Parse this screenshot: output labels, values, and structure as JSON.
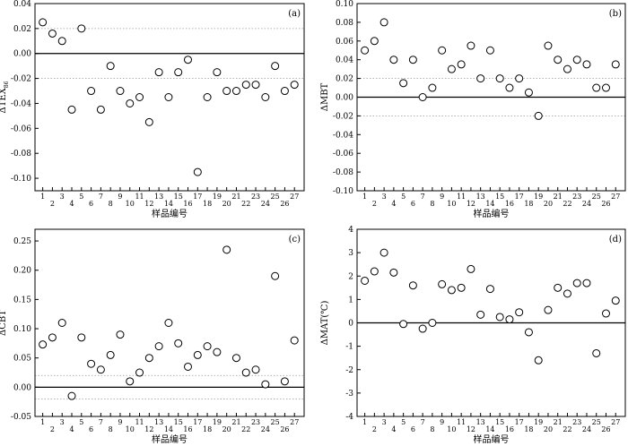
{
  "chart_data": [
    {
      "type": "scatter",
      "panel_label": "(a)",
      "xlabel": "样品编号",
      "ylabel": "ΔTEX",
      "ylabel_sub": "86",
      "x_ticks": [
        "1",
        "2",
        "3",
        "4",
        "5",
        "6",
        "7",
        "8",
        "9",
        "10",
        "11",
        "12",
        "13",
        "14",
        "15",
        "16",
        "17",
        "18",
        "19",
        "20",
        "21",
        "22",
        "23",
        "24",
        "25",
        "26",
        "27"
      ],
      "ylim": [
        -0.11,
        0.04
      ],
      "y_ticks": [
        0.04,
        0.02,
        0.0,
        -0.02,
        -0.04,
        -0.06,
        -0.08,
        -0.1
      ],
      "y_tick_labels": [
        "0.04",
        "0.02",
        "0.00",
        "-0.02",
        "-0.04",
        "-0.06",
        "-0.08",
        "-0.10"
      ],
      "zero_line": 0,
      "dotted_lines": [
        0.02,
        -0.02
      ],
      "x": [
        1,
        2,
        3,
        4,
        5,
        6,
        7,
        8,
        9,
        10,
        11,
        12,
        13,
        14,
        15,
        16,
        17,
        18,
        19,
        20,
        21,
        22,
        23,
        24,
        25,
        26,
        27
      ],
      "y": [
        0.025,
        0.016,
        0.01,
        -0.045,
        0.02,
        -0.03,
        -0.045,
        -0.01,
        -0.03,
        -0.04,
        -0.035,
        -0.055,
        -0.015,
        -0.035,
        -0.015,
        -0.005,
        -0.095,
        -0.035,
        -0.015,
        -0.03,
        -0.03,
        -0.025,
        -0.025,
        -0.035,
        -0.01,
        -0.03,
        -0.025
      ]
    },
    {
      "type": "scatter",
      "panel_label": "(b)",
      "xlabel": "样品编号",
      "ylabel": "ΔMBT",
      "ylabel_sub": "",
      "x_ticks": [
        "1",
        "2",
        "3",
        "4",
        "5",
        "6",
        "7",
        "8",
        "9",
        "10",
        "11",
        "12",
        "13",
        "14",
        "15",
        "16",
        "17",
        "18",
        "19",
        "20",
        "21",
        "22",
        "23",
        "24",
        "25",
        "26",
        "27"
      ],
      "ylim": [
        -0.1,
        0.1
      ],
      "y_ticks": [
        0.1,
        0.08,
        0.06,
        0.04,
        0.02,
        0.0,
        -0.02,
        -0.04,
        -0.06,
        -0.08,
        -0.1
      ],
      "y_tick_labels": [
        "0.10",
        "0.08",
        "0.06",
        "0.04",
        "0.02",
        "0.00",
        "-0.02",
        "-0.04",
        "-0.06",
        "-0.08",
        "-0.10"
      ],
      "zero_line": 0,
      "dotted_lines": [
        0.02,
        -0.02
      ],
      "x": [
        1,
        2,
        3,
        4,
        5,
        6,
        7,
        8,
        9,
        10,
        11,
        12,
        13,
        14,
        15,
        16,
        17,
        18,
        19,
        20,
        21,
        22,
        23,
        24,
        25,
        26,
        27
      ],
      "y": [
        0.05,
        0.06,
        0.08,
        0.04,
        0.015,
        0.04,
        0.0,
        0.01,
        0.05,
        0.03,
        0.035,
        0.055,
        0.02,
        0.05,
        0.02,
        0.01,
        0.02,
        0.005,
        -0.02,
        0.055,
        0.04,
        0.03,
        0.04,
        0.035,
        0.01,
        0.01,
        0.035
      ]
    },
    {
      "type": "scatter",
      "panel_label": "(c)",
      "xlabel": "样品编号",
      "ylabel": "ΔCBT",
      "ylabel_sub": "",
      "x_ticks": [
        "1",
        "2",
        "3",
        "4",
        "5",
        "6",
        "7",
        "8",
        "9",
        "10",
        "11",
        "12",
        "13",
        "14",
        "15",
        "16",
        "17",
        "18",
        "19",
        "20",
        "21",
        "22",
        "23",
        "24",
        "25",
        "26",
        "27"
      ],
      "ylim": [
        -0.05,
        0.27
      ],
      "y_ticks": [
        0.25,
        0.2,
        0.15,
        0.1,
        0.05,
        0.0,
        -0.05
      ],
      "y_tick_labels": [
        "0.25",
        "0.20",
        "0.15",
        "0.10",
        "0.05",
        "0.00",
        "-0.05"
      ],
      "zero_line": 0,
      "dotted_lines": [
        0.02,
        -0.02
      ],
      "x": [
        1,
        2,
        3,
        4,
        5,
        6,
        7,
        8,
        9,
        10,
        11,
        12,
        13,
        14,
        15,
        16,
        17,
        18,
        19,
        20,
        21,
        22,
        23,
        24,
        25,
        26,
        27
      ],
      "y": [
        0.073,
        0.085,
        0.11,
        -0.015,
        0.085,
        0.04,
        0.03,
        0.055,
        0.09,
        0.01,
        0.025,
        0.05,
        0.07,
        0.11,
        0.075,
        0.035,
        0.055,
        0.07,
        0.06,
        0.235,
        0.05,
        0.025,
        0.03,
        0.005,
        0.19,
        0.01,
        0.08
      ]
    },
    {
      "type": "scatter",
      "panel_label": "(d)",
      "xlabel": "样品编号",
      "ylabel": "ΔMAT(℃)",
      "ylabel_sub": "",
      "x_ticks": [
        "1",
        "2",
        "3",
        "4",
        "5",
        "6",
        "7",
        "8",
        "9",
        "10",
        "11",
        "12",
        "13",
        "14",
        "15",
        "16",
        "17",
        "18",
        "19",
        "20",
        "21",
        "22",
        "23",
        "24",
        "25",
        "26",
        "27"
      ],
      "ylim": [
        -4,
        4
      ],
      "y_ticks": [
        4,
        3,
        2,
        1,
        0,
        -1,
        -2,
        -3,
        -4
      ],
      "y_tick_labels": [
        "4",
        "3",
        "2",
        "1",
        "0",
        "-1",
        "-2",
        "-3",
        "-4"
      ],
      "zero_line": 0,
      "dotted_lines": [],
      "x": [
        1,
        2,
        3,
        4,
        5,
        6,
        7,
        8,
        9,
        10,
        11,
        12,
        13,
        14,
        15,
        16,
        17,
        18,
        19,
        20,
        21,
        22,
        23,
        24,
        25,
        26,
        27
      ],
      "y": [
        1.8,
        2.2,
        3.0,
        2.15,
        -0.05,
        1.6,
        -0.25,
        0.0,
        1.65,
        1.4,
        1.5,
        2.3,
        0.35,
        1.45,
        0.25,
        0.15,
        0.45,
        -0.4,
        -1.6,
        0.55,
        1.5,
        1.25,
        1.7,
        1.7,
        -1.3,
        0.4,
        0.95
      ]
    }
  ]
}
